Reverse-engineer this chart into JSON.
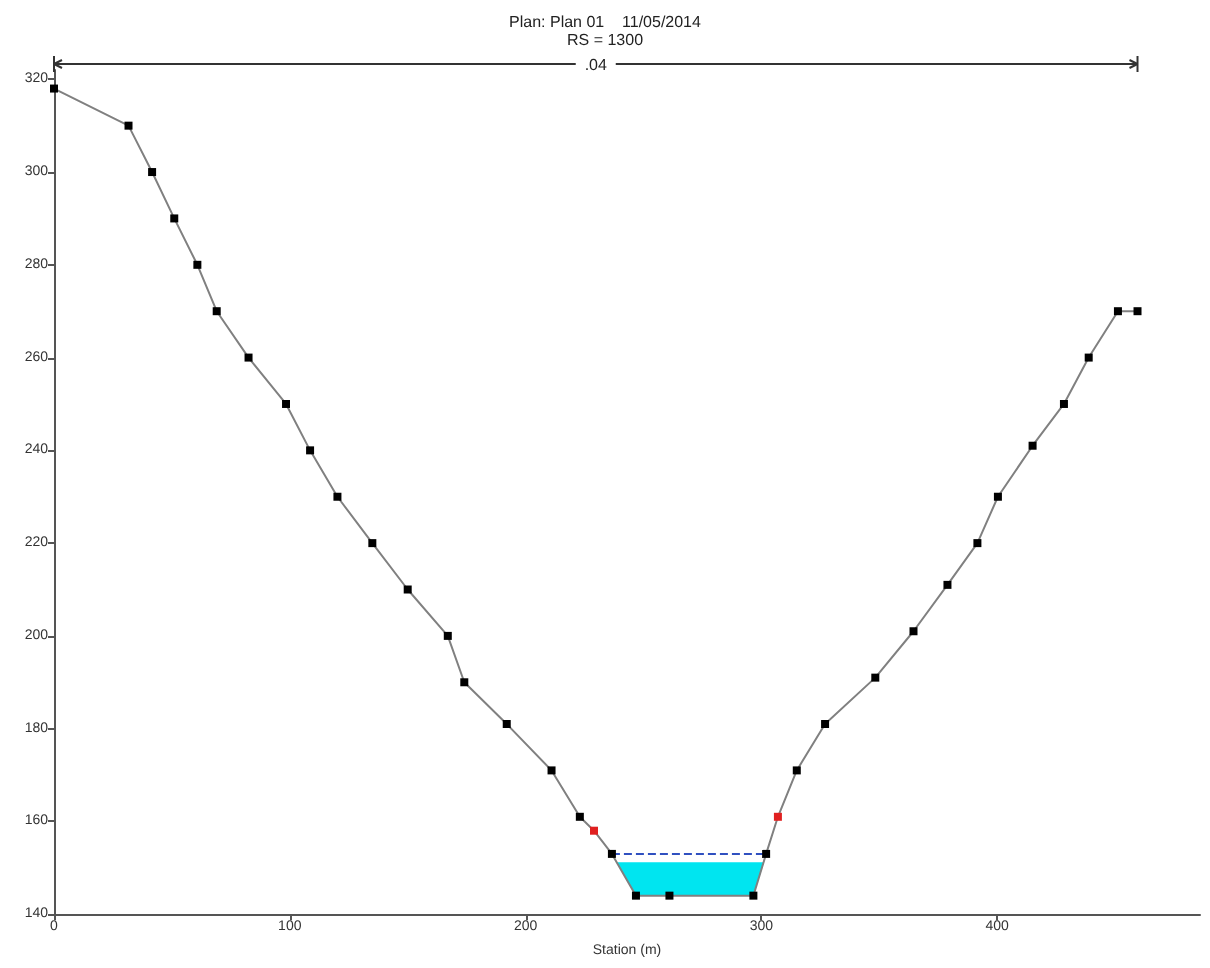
{
  "chart_data": {
    "type": "line",
    "title": "Plan: Plan 01    11/05/2014",
    "subtitle": "RS = 1300",
    "xlabel": "Station (m)",
    "annotations": [
      ".04"
    ],
    "xlim": [
      0,
      486
    ],
    "xticks": [
      0,
      100,
      200,
      300,
      400
    ],
    "ylim": [
      140,
      322
    ],
    "yticks": [
      140,
      160,
      180,
      200,
      220,
      240,
      260,
      280,
      300,
      320
    ],
    "grid": false,
    "marker": "square",
    "series": [
      {
        "color": "#00e5f0",
        "x": [
          239,
          246.8,
          296.6,
          301
        ],
        "values": [
          151,
          151,
          151,
          151
        ],
        "lower": [
          151,
          144,
          144,
          151
        ],
        "upper": [
          151,
          151,
          151,
          151
        ],
        "marker": "none"
      },
      {
        "color": "#3050c0",
        "line_style": "dashed",
        "x": [
          236.6,
          302
        ],
        "values": [
          153,
          153
        ],
        "marker": "none"
      },
      {
        "color": "#808080",
        "x": [
          0,
          31.6,
          41.6,
          51,
          60.8,
          69,
          82.5,
          98.4,
          108.6,
          120.2,
          135,
          150,
          167,
          174,
          192,
          211,
          223,
          229,
          236.6,
          246.8,
          261,
          296.6,
          302,
          307,
          315,
          327,
          348.3,
          364.5,
          378.9,
          391.6,
          400.3,
          415,
          428.3,
          438.8,
          451.2,
          459.5
        ],
        "values": [
          318,
          310,
          300,
          290,
          280,
          270,
          260,
          250,
          240,
          230,
          220,
          210,
          200,
          190,
          181,
          171,
          161,
          158,
          153,
          144,
          144,
          144,
          153,
          161,
          171,
          181,
          191,
          201,
          211,
          220,
          230,
          241,
          250,
          260,
          270,
          270
        ],
        "colors": [
          "#000000",
          "#000000",
          "#000000",
          "#000000",
          "#000000",
          "#000000",
          "#000000",
          "#000000",
          "#000000",
          "#000000",
          "#000000",
          "#000000",
          "#000000",
          "#000000",
          "#000000",
          "#000000",
          "#000000",
          "#e02020",
          "#000000",
          "#000000",
          "#000000",
          "#000000",
          "#000000",
          "#e02020",
          "#000000",
          "#000000",
          "#000000",
          "#000000",
          "#000000",
          "#000000",
          "#000000",
          "#000000",
          "#000000",
          "#000000",
          "#000000",
          "#000000"
        ]
      }
    ]
  }
}
